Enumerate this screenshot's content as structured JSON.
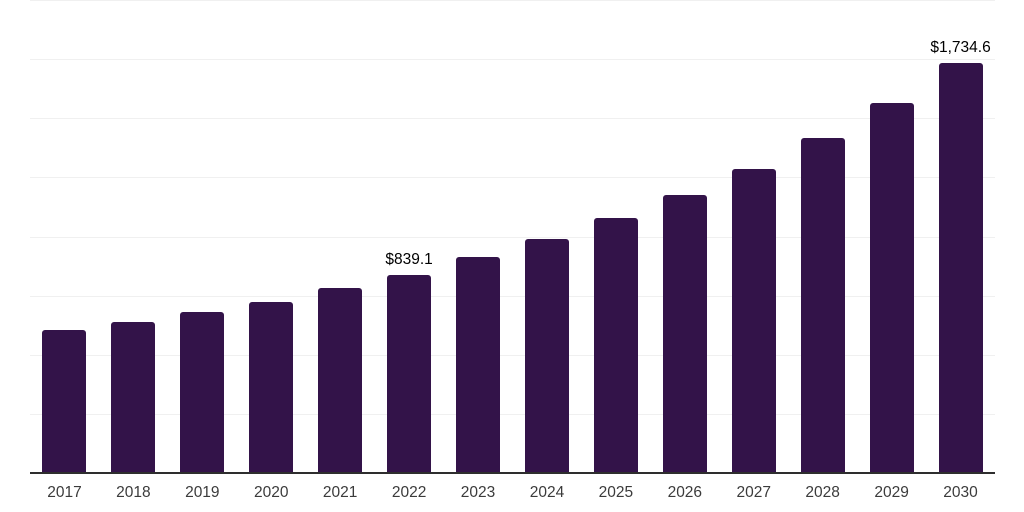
{
  "chart_data": {
    "type": "bar",
    "title": "",
    "xlabel": "",
    "ylabel": "",
    "categories": [
      "2017",
      "2018",
      "2019",
      "2020",
      "2021",
      "2022",
      "2023",
      "2024",
      "2025",
      "2026",
      "2027",
      "2028",
      "2029",
      "2030"
    ],
    "values": [
      603,
      637,
      679,
      721,
      781,
      839.1,
      912,
      988,
      1077,
      1174,
      1284,
      1415,
      1563,
      1734.6
    ],
    "point_labels": [
      "",
      "",
      "",
      "",
      "",
      "$839.1",
      "",
      "",
      "",
      "",
      "",
      "",
      "",
      "$1,734.6"
    ],
    "ylim": [
      0,
      2000
    ],
    "gridline_interval": 250,
    "grid": true,
    "legend_position": "none",
    "y_axis_tick_labels_visible": false,
    "colors": {
      "bar": "#331349",
      "axis_line": "#2e2e2e",
      "gridline": "#f0f0f0",
      "x_tick_label": "#3b3b3b",
      "value_label": "#000000",
      "background": "#ffffff"
    }
  }
}
